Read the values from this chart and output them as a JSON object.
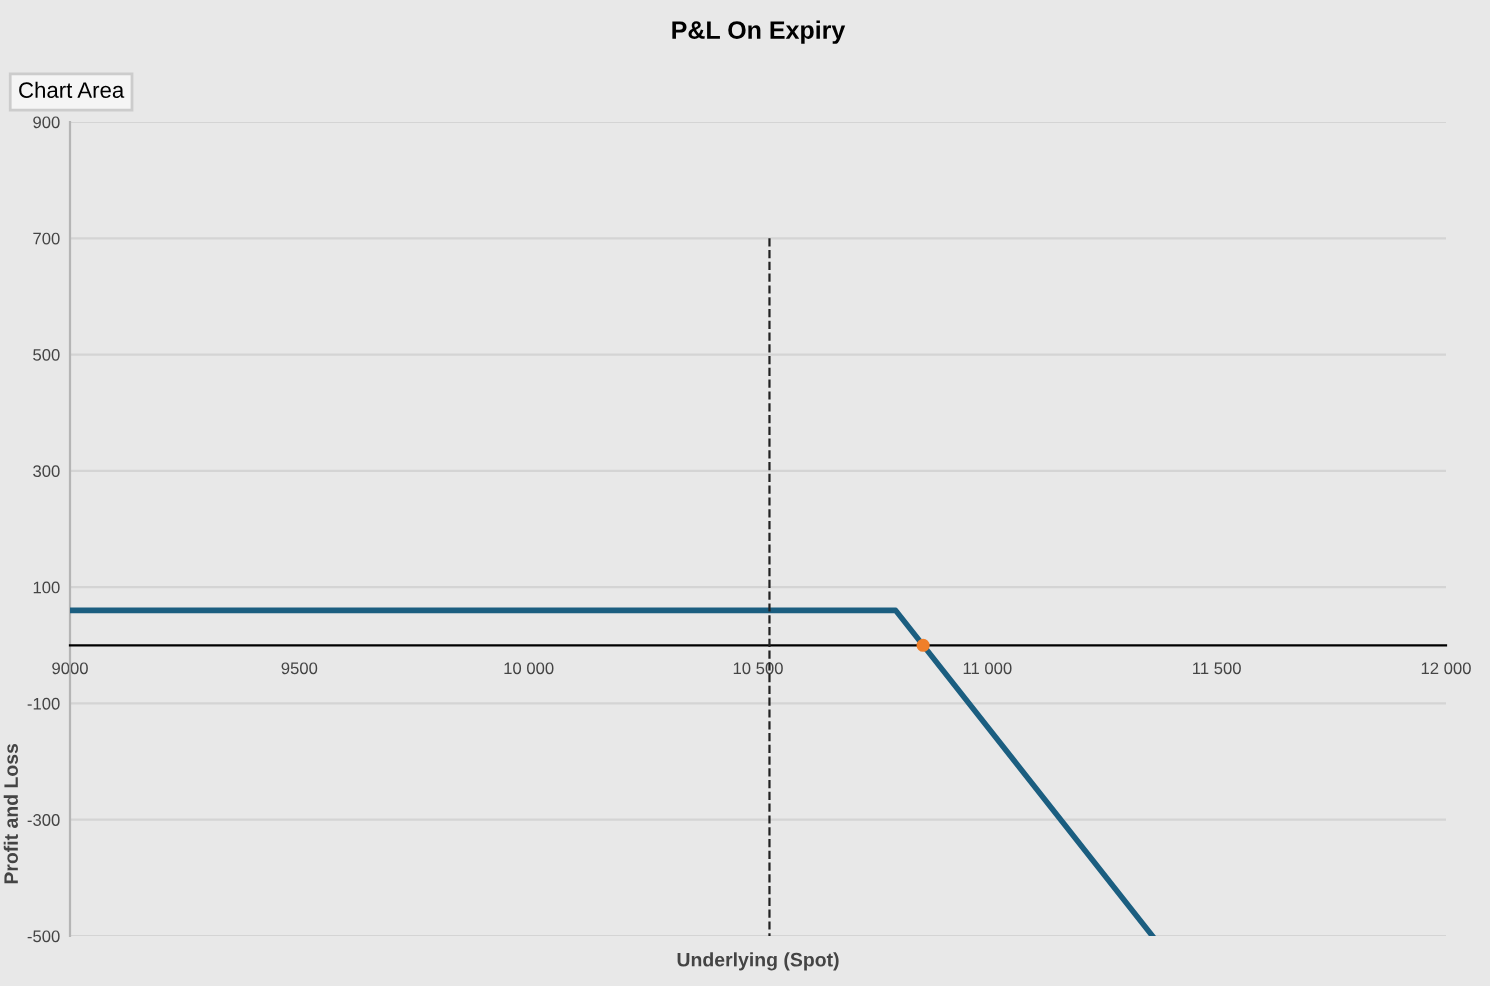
{
  "chart_data": {
    "type": "line",
    "title": "P&L On Expiry",
    "xlabel": "Underlying (Spot)",
    "ylabel": "Profit and Loss",
    "annotations": [
      "Chart Area"
    ],
    "series": [
      {
        "color": "#1b5e80",
        "x": [
          9000,
          10800,
          11360
        ],
        "values": [
          60,
          60,
          -500
        ]
      },
      {
        "type": "line",
        "color": "#222222",
        "line_style": "dashed",
        "x": [
          10525,
          10525
        ],
        "values": [
          700,
          -500
        ]
      },
      {
        "type": "scatter",
        "color": "#f07f2a",
        "marker": "circle",
        "x": [
          10860
        ],
        "values": [
          0
        ]
      }
    ],
    "xlim": [
      9000,
      12000
    ],
    "xticks": [
      9000,
      9500,
      {
        "value": 10000,
        "label": "10 000"
      },
      {
        "value": 10500,
        "label": "10 500"
      },
      {
        "value": 11000,
        "label": "11 000"
      },
      {
        "value": 11500,
        "label": "11 500"
      },
      {
        "value": 12000,
        "label": "12 000"
      }
    ],
    "ylim": [
      -500,
      900
    ],
    "yticks": [
      -500,
      -300,
      -100,
      100,
      300,
      500,
      700,
      900
    ],
    "grid": "y",
    "legend": false,
    "line_style": "solid",
    "marker": "none"
  }
}
